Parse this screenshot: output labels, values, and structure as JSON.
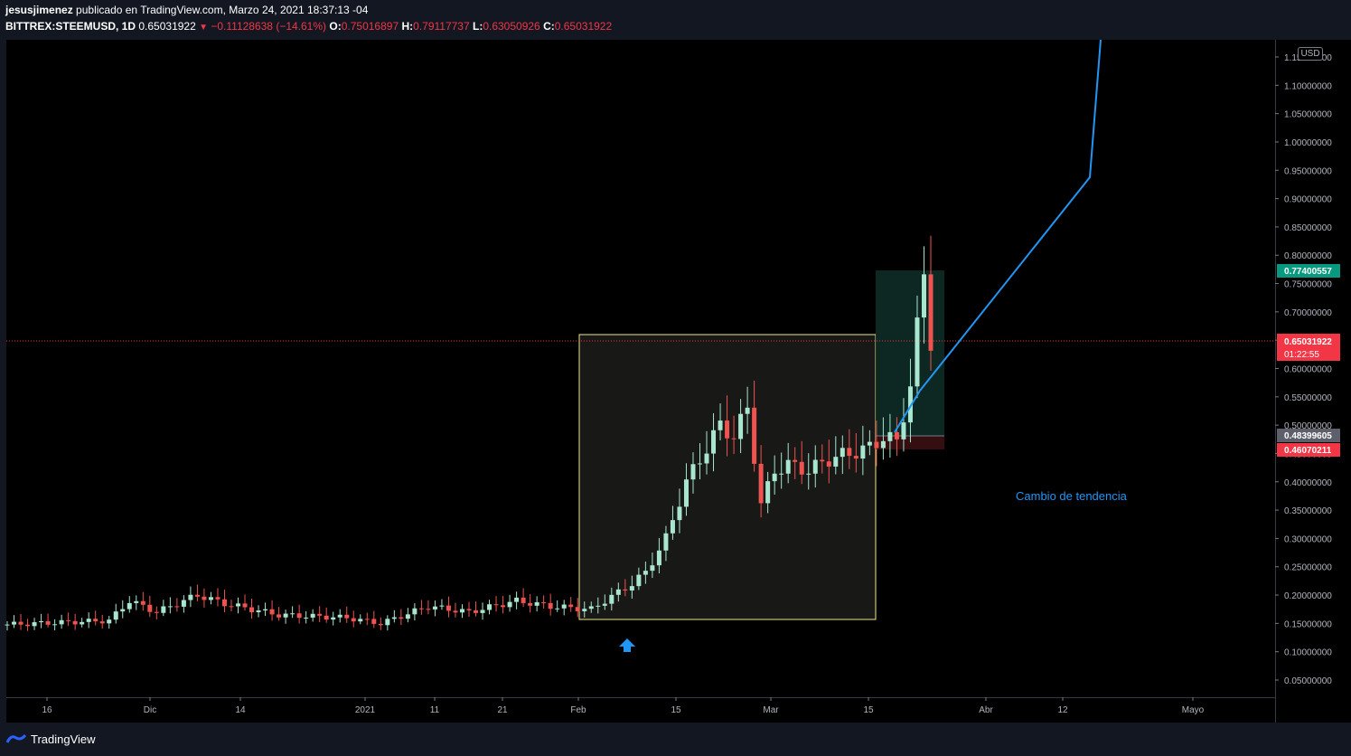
{
  "header": {
    "author": "jesusjimenez",
    "published": "publicado en TradingView.com, Marzo 24, 2021 18:37:13 -04",
    "symbol": "BITTREX:STEEMUSD, 1D",
    "last": "0.65031922",
    "change": "−0.11128638 (−14.61%)",
    "o_label": "O:",
    "o": "0.75016897",
    "h_label": "H:",
    "h": "0.79117737",
    "l_label": "L:",
    "l": "0.63050926",
    "c_label": "C:",
    "c": "0.65031922"
  },
  "axis": {
    "currency": "USD",
    "price_ticks": [
      "1.15000000",
      "1.10000000",
      "1.05000000",
      "1.00000000",
      "0.95000000",
      "0.90000000",
      "0.85000000",
      "0.80000000",
      "0.75000000",
      "0.70000000",
      "0.65000000",
      "0.60000000",
      "0.55000000",
      "0.50000000",
      "0.45000000",
      "0.40000000",
      "0.35000000",
      "0.30000000",
      "0.25000000",
      "0.20000000",
      "0.15000000",
      "0.10000000",
      "0.05000000"
    ],
    "time_ticks": [
      "16",
      "Dic",
      "14",
      "2021",
      "11",
      "21",
      "Feb",
      "15",
      "Mar",
      "15",
      "Abr",
      "12",
      "Mayo"
    ]
  },
  "price_labels": {
    "target": "0.77400557",
    "current": "0.65031922",
    "countdown": "01:22:55",
    "entry": "0.48399605",
    "stop": "0.46070211"
  },
  "annotation": {
    "text": "Cambio de tendencia"
  },
  "footer": {
    "brand": "TradingView"
  },
  "colors": {
    "up": "#a8e6cf",
    "down": "#ef5350",
    "trend_line": "#2196f3",
    "box_border": "#f0e68c"
  },
  "chart_data": {
    "type": "candlestick",
    "title": "BITTREX:STEEMUSD, 1D",
    "price_range": [
      0.0,
      1.17
    ],
    "levels": {
      "current": 0.6503,
      "target": 0.774,
      "entry": 0.484,
      "stop": 0.4607
    },
    "trend_line_points": [
      [
        0.43,
        0.44
      ],
      [
        0.55,
        0.48
      ],
      [
        0.94,
        0.94
      ],
      [
        1.17,
        1.17
      ]
    ],
    "candles_note": "approximate daily OHLC from mid-Nov 2020 to Mar 24 2021"
  }
}
